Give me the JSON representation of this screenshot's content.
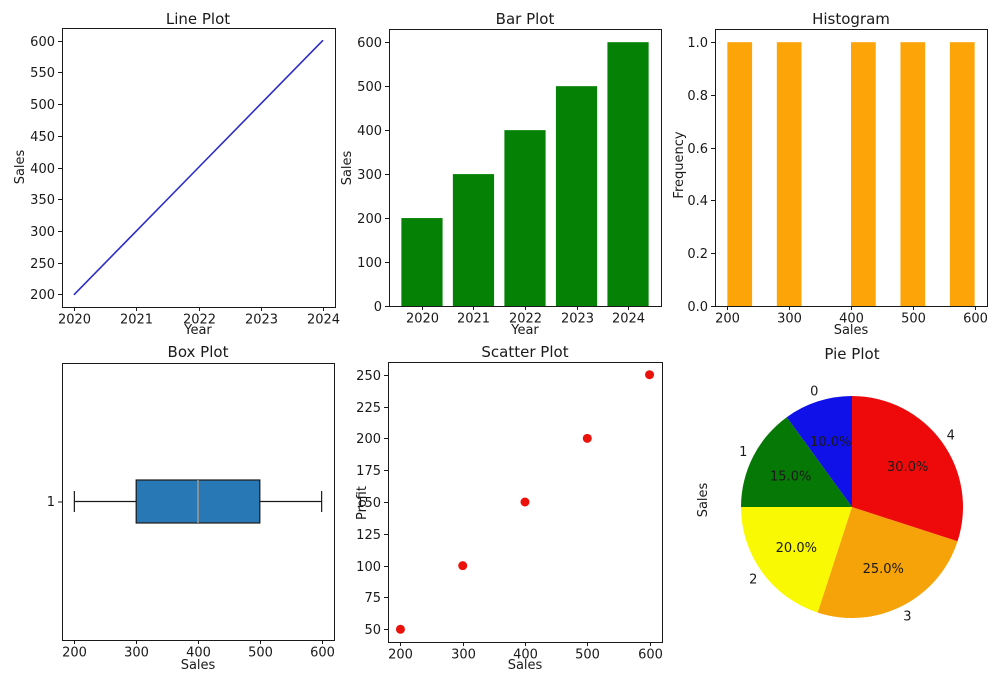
{
  "figure": {
    "background": "#ffffff",
    "text_color": "#1a1a1a",
    "frame_color": "#1a1a1a"
  },
  "chart_data": [
    {
      "type": "line",
      "title": "Line Plot",
      "xlabel": "Year",
      "ylabel": "Sales",
      "x": [
        2020,
        2021,
        2022,
        2023,
        2024
      ],
      "y": [
        200,
        300,
        400,
        500,
        600
      ],
      "color": "#2c2cc9",
      "xlim": [
        2019.8,
        2024.2
      ],
      "ylim": [
        180,
        620
      ],
      "xticks": [
        2020,
        2021,
        2022,
        2023,
        2024
      ],
      "xtick_labels": [
        "2020",
        "2021",
        "2022",
        "2023",
        "2024"
      ],
      "yticks": [
        200,
        250,
        300,
        350,
        400,
        450,
        500,
        550,
        600
      ],
      "ytick_labels": [
        "200",
        "250",
        "300",
        "350",
        "400",
        "450",
        "500",
        "550",
        "600"
      ]
    },
    {
      "type": "bar",
      "title": "Bar Plot",
      "xlabel": "Year",
      "ylabel": "Sales",
      "categories": [
        "2020",
        "2021",
        "2022",
        "2023",
        "2024"
      ],
      "values": [
        200,
        300,
        400,
        500,
        600
      ],
      "color": "#058205",
      "bar_width": 0.8,
      "xlim": [
        -0.64,
        4.64
      ],
      "ylim": [
        0,
        630
      ],
      "yticks": [
        0,
        100,
        200,
        300,
        400,
        500,
        600
      ],
      "ytick_labels": [
        "0",
        "100",
        "200",
        "300",
        "400",
        "500",
        "600"
      ]
    },
    {
      "type": "histogram",
      "title": "Histogram",
      "xlabel": "Sales",
      "ylabel": "Frequency",
      "values": [
        200,
        300,
        400,
        500,
        600
      ],
      "bins": [
        [
          200,
          240
        ],
        [
          280,
          320
        ],
        [
          400,
          440
        ],
        [
          480,
          520
        ],
        [
          560,
          600
        ]
      ],
      "frequencies": [
        1,
        1,
        1,
        1,
        1
      ],
      "color": "#fca408",
      "xlim": [
        180,
        620
      ],
      "ylim": [
        0,
        1.05
      ],
      "xticks": [
        200,
        300,
        400,
        500,
        600
      ],
      "xtick_labels": [
        "200",
        "300",
        "400",
        "500",
        "600"
      ],
      "yticks": [
        0,
        0.2,
        0.4,
        0.6,
        0.8,
        1
      ],
      "ytick_labels": [
        "0.0",
        "0.2",
        "0.4",
        "0.6",
        "0.8",
        "1.0"
      ]
    },
    {
      "type": "box",
      "title": "Box Plot",
      "xlabel": "Sales",
      "whisker_min": 200,
      "q1": 300,
      "median": 400,
      "q3": 500,
      "whisker_max": 600,
      "position_label": "1",
      "box_fill": "#2878b5",
      "box_edge": "#1a1a1a",
      "median_color": "#a39b8f",
      "whisker_color": "#1a1a1a",
      "xlim": [
        180,
        620
      ],
      "xticks": [
        200,
        300,
        400,
        500,
        600
      ],
      "xtick_labels": [
        "200",
        "300",
        "400",
        "500",
        "600"
      ]
    },
    {
      "type": "scatter",
      "title": "Scatter Plot",
      "xlabel": "Sales",
      "ylabel": "Profit",
      "x": [
        200,
        300,
        400,
        500,
        600
      ],
      "y": [
        50,
        100,
        150,
        200,
        250
      ],
      "color": "#ea120b",
      "marker_radius": 4.5,
      "xlim": [
        180,
        620
      ],
      "ylim": [
        40,
        260
      ],
      "xticks": [
        200,
        300,
        400,
        500,
        600
      ],
      "xtick_labels": [
        "200",
        "300",
        "400",
        "500",
        "600"
      ],
      "yticks": [
        50,
        75,
        100,
        125,
        150,
        175,
        200,
        225,
        250
      ],
      "ytick_labels": [
        "50",
        "75",
        "100",
        "125",
        "150",
        "175",
        "200",
        "225",
        "250"
      ]
    },
    {
      "type": "pie",
      "title": "Pie Plot",
      "ylabel": "Sales",
      "labels": [
        "0",
        "1",
        "2",
        "3",
        "4"
      ],
      "values": [
        10,
        15,
        20,
        25,
        30
      ],
      "percent_labels": [
        "10.0%",
        "15.0%",
        "20.0%",
        "25.0%",
        "30.0%"
      ],
      "colors": [
        "#1010e8",
        "#067806",
        "#f9f903",
        "#f6a30a",
        "#ee0a0a"
      ],
      "start_angle": 90,
      "counterclock": true,
      "label_distance": 1.1,
      "pct_distance": 0.62
    }
  ]
}
